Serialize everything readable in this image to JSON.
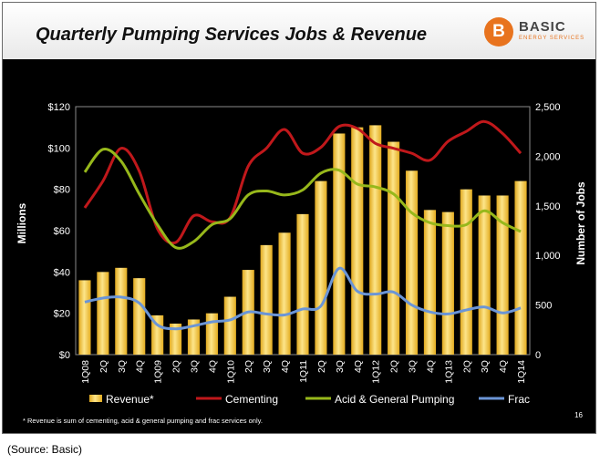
{
  "header": {
    "title": "Quarterly Pumping Services Jobs & Revenue",
    "logo_letter": "B",
    "logo_name": "BASIC",
    "logo_subtitle": "ENERGY SERVICES"
  },
  "footnote": "* Revenue is sum of cementing, acid & general pumping and frac services only.",
  "page_number": "16",
  "source_caption": "(Source: Basic)",
  "colors": {
    "bar_fill": "#f2c94c",
    "cementing": "#c0181b",
    "acid": "#97b81b",
    "frac": "#6b95d6"
  },
  "chart_data": {
    "type": "bar",
    "categories": [
      "1Q08",
      "2Q",
      "3Q",
      "4Q",
      "1Q09",
      "2Q",
      "3Q",
      "4Q",
      "1Q10",
      "2Q",
      "3Q",
      "4Q",
      "1Q11",
      "2Q",
      "3Q",
      "4Q",
      "1Q12",
      "2Q",
      "3Q",
      "4Q",
      "1Q13",
      "2Q",
      "3Q",
      "4Q",
      "1Q14"
    ],
    "ylabel": "Millions",
    "y2label": "Number of Jobs",
    "ylim": [
      0,
      120
    ],
    "y2lim": [
      0,
      2500
    ],
    "yticks": [
      "$0",
      "$20",
      "$40",
      "$60",
      "$80",
      "$100",
      "$120"
    ],
    "y2ticks": [
      "0",
      "500",
      "1,000",
      "1,500",
      "2,000",
      "2,500"
    ],
    "series": [
      {
        "name": "Revenue*",
        "type": "bar",
        "axis": "left",
        "values": [
          36,
          40,
          42,
          37,
          19,
          15,
          17,
          20,
          28,
          41,
          53,
          59,
          68,
          84,
          107,
          110,
          111,
          103,
          89,
          70,
          69,
          80,
          77,
          77,
          84
        ]
      },
      {
        "name": "Cementing",
        "type": "line",
        "axis": "right",
        "values": [
          1480,
          1750,
          2080,
          1850,
          1270,
          1130,
          1400,
          1340,
          1380,
          1900,
          2080,
          2270,
          2030,
          2090,
          2300,
          2280,
          2130,
          2080,
          2030,
          1960,
          2150,
          2250,
          2350,
          2230,
          2030
        ]
      },
      {
        "name": "Acid & General Pumping",
        "type": "line",
        "axis": "right",
        "values": [
          1840,
          2070,
          1950,
          1620,
          1310,
          1080,
          1140,
          1310,
          1370,
          1610,
          1650,
          1610,
          1660,
          1830,
          1860,
          1720,
          1690,
          1620,
          1430,
          1330,
          1300,
          1310,
          1450,
          1330,
          1240
        ]
      },
      {
        "name": "Frac",
        "type": "line",
        "axis": "right",
        "values": [
          530,
          570,
          580,
          520,
          300,
          260,
          290,
          330,
          350,
          430,
          410,
          400,
          460,
          490,
          870,
          640,
          610,
          630,
          500,
          430,
          410,
          450,
          480,
          420,
          470
        ]
      }
    ],
    "legend": "bottom"
  }
}
